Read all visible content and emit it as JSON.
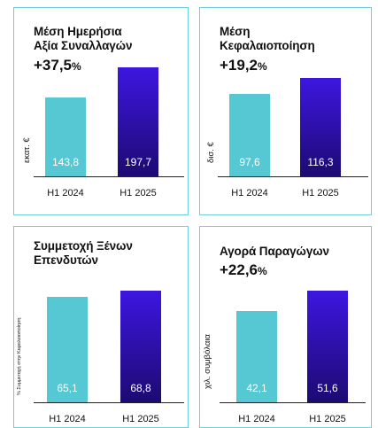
{
  "chart_data": [
    {
      "type": "bar",
      "title_lines": [
        "Μέση Ημερήσια",
        "Αξία Συναλλαγών"
      ],
      "change_value": "+37,5",
      "change_pct": "%",
      "ylabel": "εκατ. €",
      "categories": [
        "H1 2024",
        "H1 2025"
      ],
      "values": [
        143.8,
        197.7
      ],
      "value_labels": [
        "143,8",
        "197,7"
      ],
      "colors": [
        "#55c8d4",
        "#2a0fb0"
      ],
      "ylim": [
        0,
        197.7
      ]
    },
    {
      "type": "bar",
      "title_lines": [
        "Μέση",
        "Κεφαλαιοποίηση"
      ],
      "change_value": "+19,2",
      "change_pct": "%",
      "ylabel": "δισ. €",
      "categories": [
        "H1 2024",
        "H1 2025"
      ],
      "values": [
        97.6,
        116.3
      ],
      "value_labels": [
        "97,6",
        "116,3"
      ],
      "colors": [
        "#55c8d4",
        "#2a0fb0"
      ],
      "ylim": [
        0,
        116.3
      ]
    },
    {
      "type": "bar",
      "title_lines": [
        "Συμμετοχή Ξένων",
        "Επενδυτών"
      ],
      "change_value": "",
      "change_pct": "",
      "ylabel": "% Συμμετοχή στην Κεφαλαιοποίηση",
      "categories": [
        "H1 2024",
        "H1 2025"
      ],
      "values": [
        65.1,
        68.8
      ],
      "value_labels": [
        "65,1",
        "68,8"
      ],
      "colors": [
        "#55c8d4",
        "#2a0fb0"
      ],
      "ylim": [
        0,
        68.8
      ]
    },
    {
      "type": "bar",
      "title_lines": [
        "Αγορά Παραγώγων"
      ],
      "change_value": "+22,6",
      "change_pct": "%",
      "ylabel": "χιλ. συμβόλαια",
      "categories": [
        "H1 2024",
        "H1 2025"
      ],
      "values": [
        42.1,
        51.6
      ],
      "value_labels": [
        "42,1",
        "51,6"
      ],
      "colors": [
        "#55c8d4",
        "#2a0fb0"
      ],
      "ylim": [
        0,
        51.6
      ]
    }
  ]
}
